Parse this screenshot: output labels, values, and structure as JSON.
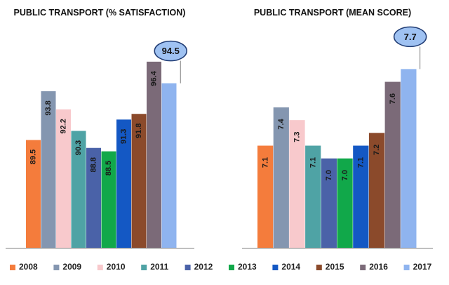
{
  "chart_data": [
    {
      "type": "bar",
      "title": "PUBLIC TRANSPORT (% SATISFACTION)",
      "categories": [
        "2008",
        "2009",
        "2010",
        "2011",
        "2012",
        "2013",
        "2014",
        "2015",
        "2016",
        "2017"
      ],
      "values": [
        89.5,
        93.8,
        92.2,
        90.3,
        88.8,
        88.5,
        91.3,
        91.8,
        96.4,
        94.5
      ],
      "data_labels": [
        "89.5",
        "93.8",
        "92.2",
        "90.3",
        "88.8",
        "88.5",
        "91.3",
        "91.8",
        "96.4",
        "94.5"
      ],
      "ylim": [
        80,
        98
      ],
      "grid": false,
      "highlight": {
        "category": "2017",
        "label": "94.5"
      }
    },
    {
      "type": "bar",
      "title": "PUBLIC TRANSPORT (MEAN SCORE)",
      "categories": [
        "2008",
        "2009",
        "2010",
        "2011",
        "2012",
        "2013",
        "2014",
        "2015",
        "2016",
        "2017"
      ],
      "values": [
        7.1,
        7.4,
        7.3,
        7.1,
        7.0,
        7.0,
        7.1,
        7.2,
        7.6,
        7.7
      ],
      "data_labels": [
        "7.1",
        "7.4",
        "7.3",
        "7.1",
        "7.0",
        "7.0",
        "7.1",
        "7.2",
        "7.6",
        "7.7"
      ],
      "ylim": [
        6.3,
        7.9
      ],
      "grid": false,
      "highlight": {
        "category": "2017",
        "label": "7.7"
      }
    }
  ],
  "legend": {
    "placement": "bottom",
    "items": [
      "2008",
      "2009",
      "2010",
      "2011",
      "2012",
      "2013",
      "2014",
      "2015",
      "2016",
      "2017"
    ]
  },
  "colors": {
    "2008": "#f47c3c",
    "2009": "#8496b0",
    "2010": "#f8c9cc",
    "2011": "#4fa3a5",
    "2012": "#4a62a8",
    "2013": "#11a84a",
    "2014": "#1458c4",
    "2015": "#8b4a2b",
    "2016": "#7b6a78",
    "2017": "#8fb4ef",
    "callout_fill": "#9fc2f2",
    "callout_stroke": "#1f3b73",
    "axis": "#7f7f7f"
  }
}
